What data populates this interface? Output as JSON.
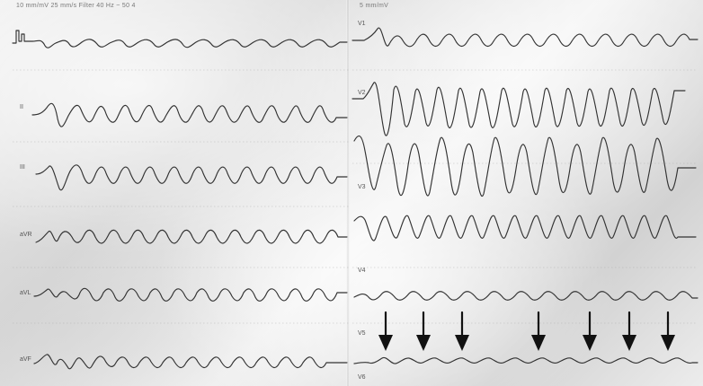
{
  "header": {
    "left_text": "10 mm/mV   25 mm/s   Filter 40 Hz   ~ 50   4",
    "right_text": "5 mm/mV"
  },
  "leads": {
    "left": [
      {
        "label": ""
      },
      {
        "label": "II"
      },
      {
        "label": "III"
      },
      {
        "label": "aVR"
      },
      {
        "label": "aVL"
      },
      {
        "label": "aVF"
      }
    ],
    "right": [
      {
        "label": "V1"
      },
      {
        "label": "V2"
      },
      {
        "label": "V3"
      },
      {
        "label": "V4"
      },
      {
        "label": "V5"
      },
      {
        "label": "V6"
      }
    ]
  },
  "annotations": {
    "arrow_count": 7
  },
  "colors": {
    "paper": "#e7e7e7",
    "trace": "#333333",
    "arrow": "#111111"
  }
}
